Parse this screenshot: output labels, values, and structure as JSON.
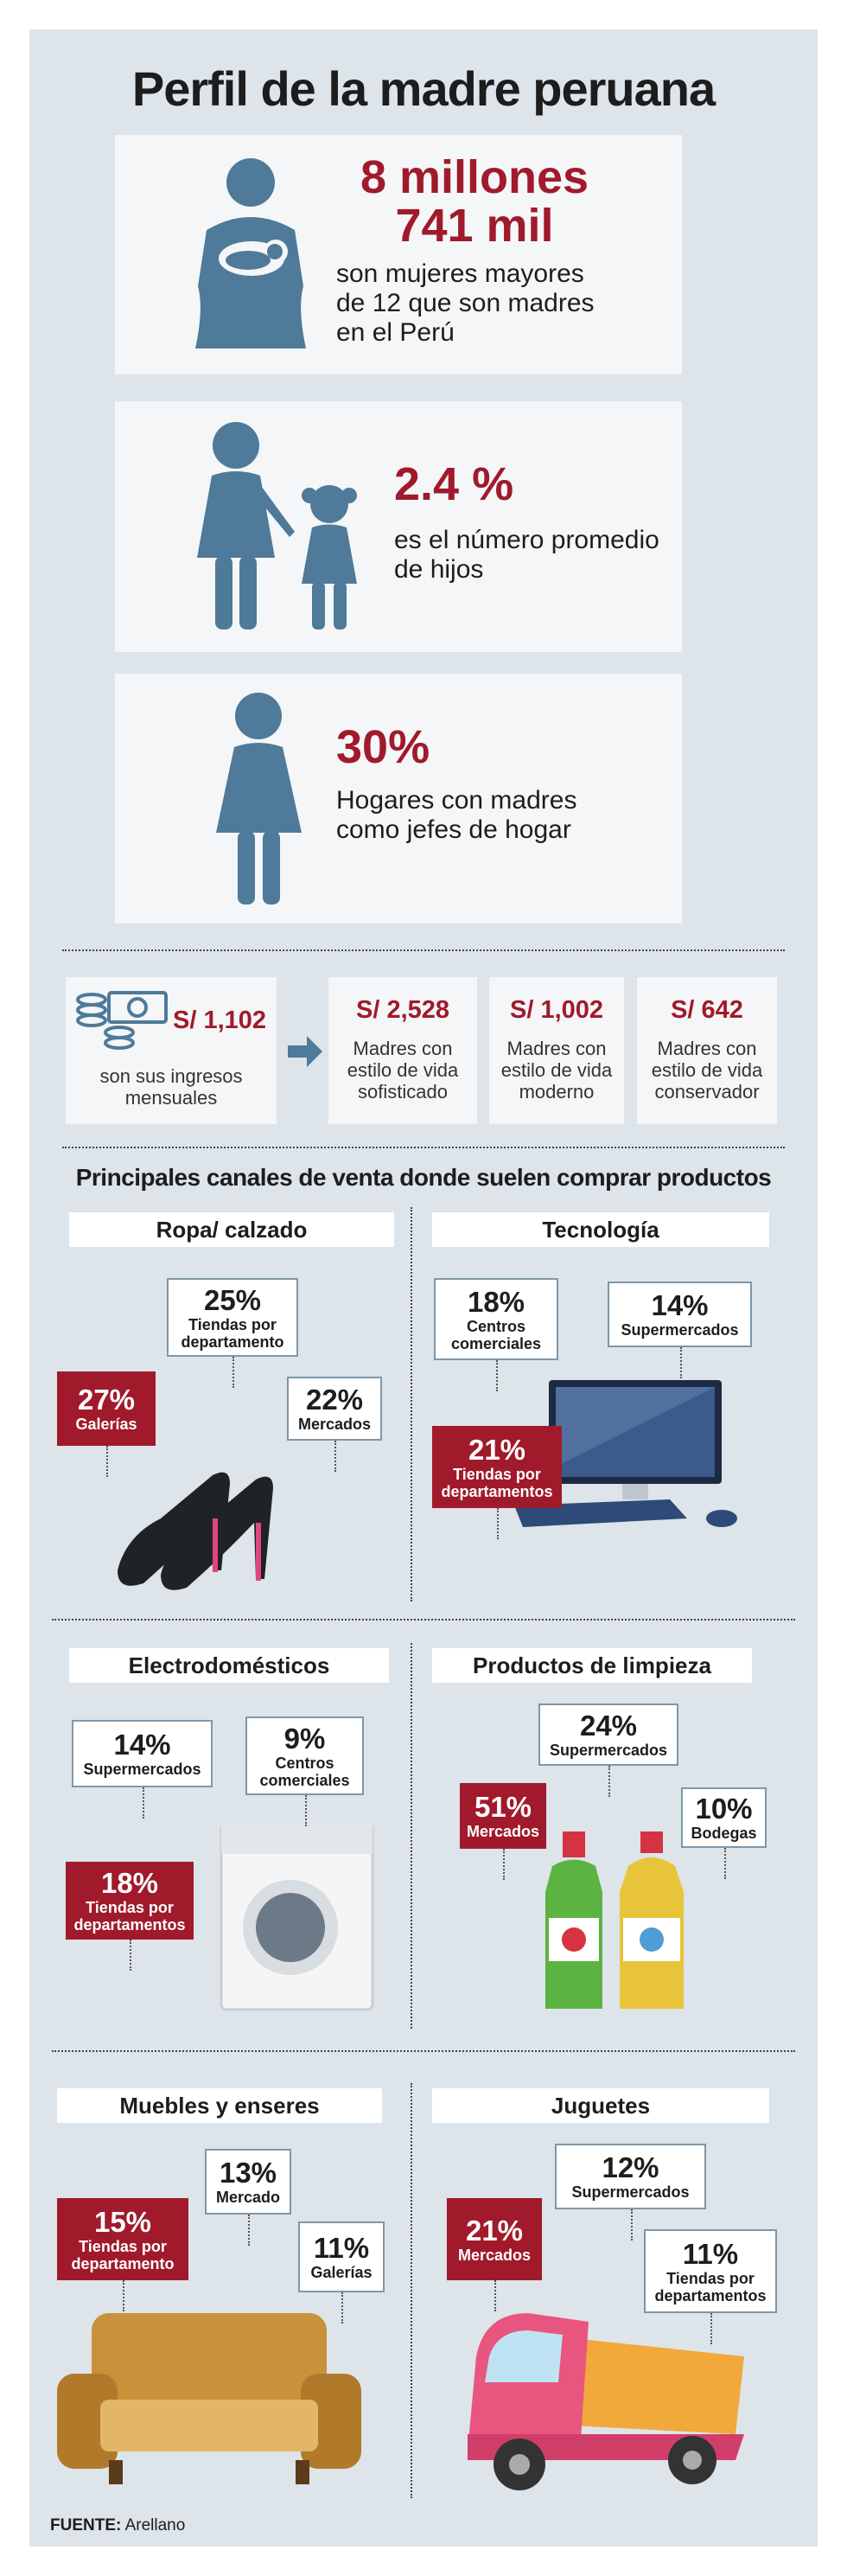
{
  "title": "Perfil de la madre peruana",
  "stats": [
    {
      "value": "8 millones 741 mil",
      "text": "son mujeres mayores de 12 que son madres en el Perú"
    },
    {
      "value": "2.4 %",
      "text": "es el número promedio de hijos"
    },
    {
      "value": "30%",
      "text": "Hogares con madres como jefes de hogar"
    }
  ],
  "income": {
    "amount": "S/ 1,102",
    "label": "son sus ingresos mensuales"
  },
  "lifestyles": [
    {
      "amount": "S/ 2,528",
      "label": "Madres con estilo de vida sofisticado"
    },
    {
      "amount": "S/ 1,002",
      "label": "Madres con estilo de vida moderno"
    },
    {
      "amount": "S/ 642",
      "label": "Madres con estilo de vida conservador"
    }
  ],
  "channels": {
    "title": "Principales canales de venta donde suelen comprar productos",
    "panels": [
      {
        "title": "Ropa/ calzado",
        "items": [
          {
            "pct": "25%",
            "label": "Tiendas por departamento",
            "highlight": false
          },
          {
            "pct": "27%",
            "label": "Galerías",
            "highlight": true
          },
          {
            "pct": "22%",
            "label": "Mercados",
            "highlight": false
          }
        ]
      },
      {
        "title": "Tecnología",
        "items": [
          {
            "pct": "18%",
            "label": "Centros comerciales",
            "highlight": false
          },
          {
            "pct": "14%",
            "label": "Supermercados",
            "highlight": false
          },
          {
            "pct": "21%",
            "label": "Tiendas por departamentos",
            "highlight": true
          }
        ]
      },
      {
        "title": "Electrodomésticos",
        "items": [
          {
            "pct": "14%",
            "label": "Supermercados",
            "highlight": false
          },
          {
            "pct": "9%",
            "label": "Centros comerciales",
            "highlight": false
          },
          {
            "pct": "18%",
            "label": "Tiendas por departamentos",
            "highlight": true
          }
        ]
      },
      {
        "title": "Productos de limpieza",
        "items": [
          {
            "pct": "24%",
            "label": "Supermercados",
            "highlight": false
          },
          {
            "pct": "51%",
            "label": "Mercados",
            "highlight": true
          },
          {
            "pct": "10%",
            "label": "Bodegas",
            "highlight": false
          }
        ]
      },
      {
        "title": "Muebles y enseres",
        "items": [
          {
            "pct": "15%",
            "label": "Tiendas por departamento",
            "highlight": true
          },
          {
            "pct": "13%",
            "label": "Mercado",
            "highlight": false
          },
          {
            "pct": "11%",
            "label": "Galerías",
            "highlight": false
          }
        ]
      },
      {
        "title": "Juguetes",
        "items": [
          {
            "pct": "12%",
            "label": "Supermercados",
            "highlight": false
          },
          {
            "pct": "21%",
            "label": "Mercados",
            "highlight": true
          },
          {
            "pct": "11%",
            "label": "Tiendas por departamentos",
            "highlight": false
          }
        ]
      }
    ]
  },
  "source": {
    "label": "FUENTE:",
    "text": "Arellano"
  }
}
